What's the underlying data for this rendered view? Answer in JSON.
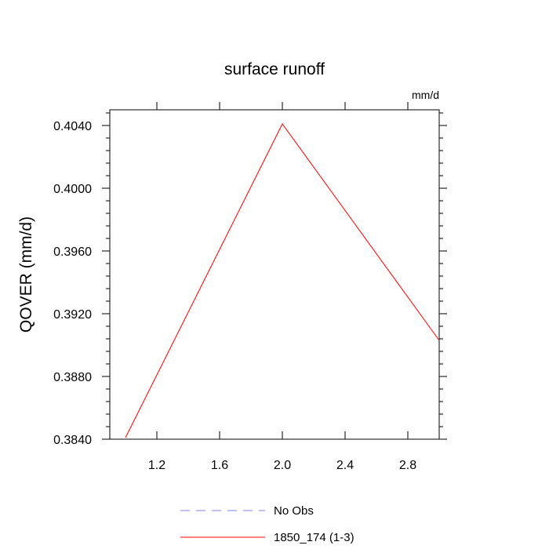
{
  "chart_data": {
    "type": "line",
    "title": "surface runoff",
    "units_label": "mm/d",
    "ylabel": "QOVER  (mm/d)",
    "xlabel": "",
    "xlim": [
      0.9,
      3.0
    ],
    "ylim": [
      0.384,
      0.405
    ],
    "x_ticks": [
      1.2,
      1.6,
      2.0,
      2.4,
      2.8
    ],
    "x_tick_labels": [
      "1.2",
      "1.6",
      "2.0",
      "2.4",
      "2.8"
    ],
    "y_ticks": [
      0.384,
      0.388,
      0.392,
      0.396,
      0.4,
      0.404
    ],
    "y_tick_labels": [
      "0.3840",
      "0.3880",
      "0.3920",
      "0.3960",
      "0.4000",
      "0.4040"
    ],
    "grid": false,
    "legend_position": "bottom-center",
    "series": [
      {
        "name": "No Obs",
        "color": "#8080ff",
        "dash": "dashed",
        "x": [],
        "y": []
      },
      {
        "name": "1850_174 (1-3)",
        "color": "#ff0000",
        "dash": "solid",
        "x": [
          1.0,
          2.0,
          3.0
        ],
        "y": [
          0.3841,
          0.4041,
          0.3903
        ]
      }
    ]
  }
}
